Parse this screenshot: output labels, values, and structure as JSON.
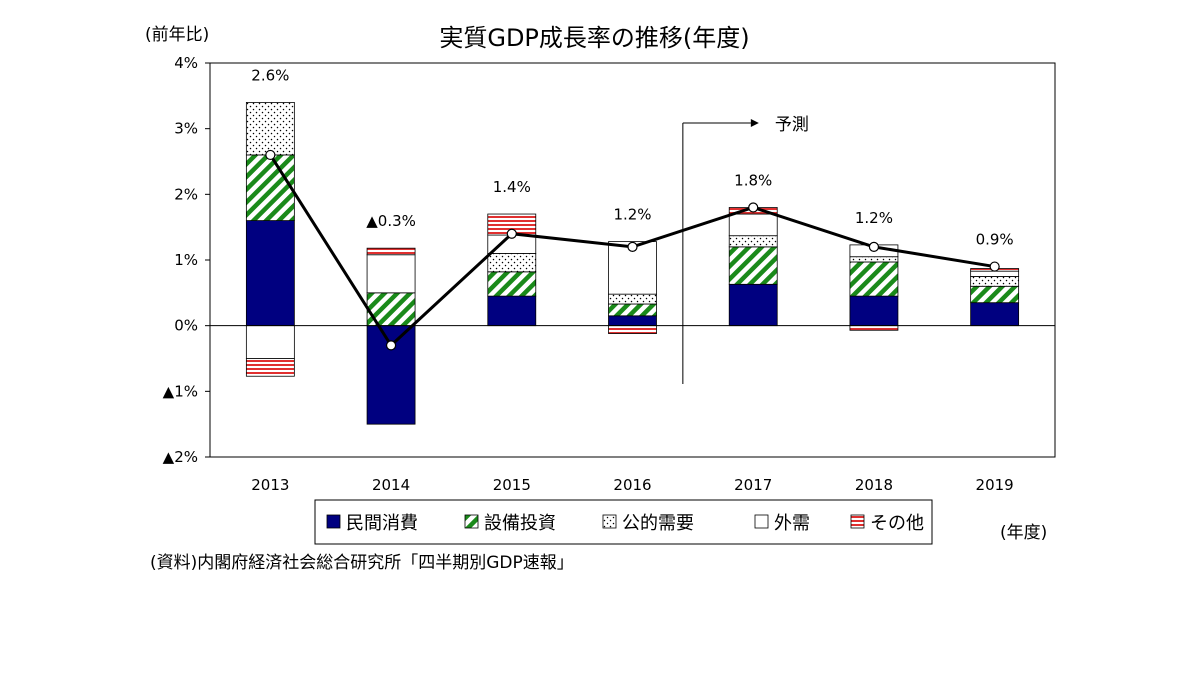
{
  "chart_data": {
    "type": "stacked-bar+line",
    "title": "実質GDP成長率の推移(年度)",
    "ylabel": "(前年比)",
    "xlabel": "(年度)",
    "ylim": [
      -2,
      4
    ],
    "yticks": [
      {
        "value": 4,
        "label": "4%"
      },
      {
        "value": 3,
        "label": "3%"
      },
      {
        "value": 2,
        "label": "2%"
      },
      {
        "value": 1,
        "label": "1%"
      },
      {
        "value": 0,
        "label": "0%"
      },
      {
        "value": -1,
        "label": "▲1%"
      },
      {
        "value": -2,
        "label": "▲2%"
      }
    ],
    "categories": [
      "2013",
      "2014",
      "2015",
      "2016",
      "2017",
      "2018",
      "2019"
    ],
    "series": [
      {
        "name": "民間消費",
        "key": "consumption",
        "values": [
          1.6,
          -1.5,
          0.45,
          0.15,
          0.63,
          0.45,
          0.35
        ]
      },
      {
        "name": "設備投資",
        "key": "capex",
        "values": [
          1.0,
          0.5,
          0.37,
          0.18,
          0.57,
          0.52,
          0.25
        ]
      },
      {
        "name": "公的需要",
        "key": "public",
        "values": [
          0.8,
          -0.0,
          0.28,
          0.15,
          0.17,
          0.08,
          0.15
        ]
      },
      {
        "name": "外需",
        "key": "external",
        "values": [
          -0.5,
          0.58,
          0.28,
          0.8,
          0.33,
          0.18,
          0.08
        ]
      },
      {
        "name": "その他",
        "key": "other",
        "values": [
          -0.27,
          0.1,
          0.32,
          -0.12,
          0.1,
          -0.07,
          0.04
        ]
      }
    ],
    "gdp_growth": [
      2.6,
      -0.3,
      1.4,
      1.2,
      1.8,
      1.2,
      0.9
    ],
    "gdp_labels": [
      "2.6%",
      "▲0.3%",
      "1.4%",
      "1.2%",
      "1.8%",
      "1.2%",
      "0.9%"
    ],
    "forecast_start_index": 4,
    "forecast_label": "予測",
    "legend_position": "bottom",
    "grid": false
  },
  "colors": {
    "consumption": "#000080",
    "capex": "#1a8a1a",
    "public": "#000000",
    "external": "#ffffff",
    "other": "#e03030",
    "line": "#000000"
  },
  "source": "(資料)内閣府経済社会総合研究所「四半期別GDP速報」"
}
